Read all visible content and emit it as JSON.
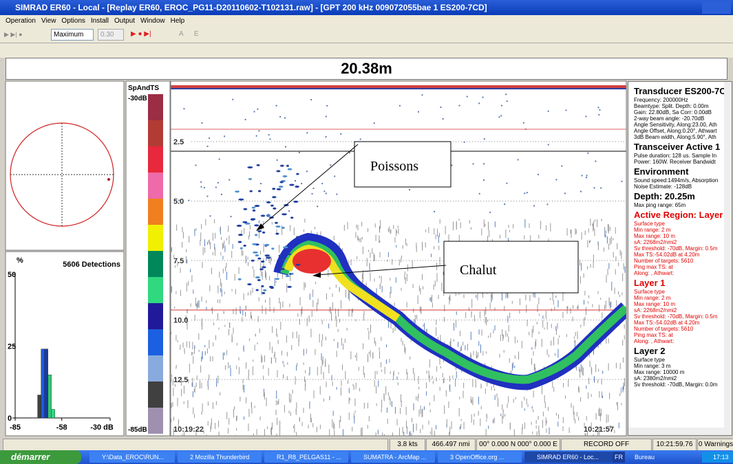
{
  "window": {
    "title": "SIMRAD ER60 - Local - [Replay ER60, EROC_PG11-D20110602-T102131.raw] - [GPT 200 kHz 009072055bae 1 ES200-7CD]",
    "menu": [
      "Operation",
      "View",
      "Options",
      "Install",
      "Output",
      "Window",
      "Help"
    ],
    "toolbar": {
      "range": "Maximum",
      "value": "0.30",
      "buttons": [
        "A",
        "E"
      ]
    }
  },
  "depth_header": "20.38m",
  "histogram": {
    "type": "histogram",
    "title": "5606 Detections",
    "y_unit": "%",
    "xlim": [
      -85,
      -30
    ],
    "xticks": [
      -85,
      -58,
      {
        "value": -30,
        "label": "-30 dB"
      }
    ],
    "ylim": [
      0,
      50
    ],
    "yticks": [
      0,
      25,
      50
    ],
    "bins": [
      -72,
      -70,
      -68,
      -66,
      -64,
      -62
    ],
    "counts": [
      8,
      24,
      24,
      15,
      3
    ],
    "colors": [
      "#404040",
      "#1a5ce0",
      "#1a3aa0",
      "#30c878",
      "#30d880"
    ]
  },
  "colorbar": {
    "title": "SpAndTS",
    "top_label": "-30dB",
    "bottom_label": "-85dB",
    "colors": [
      "#9b2d44",
      "#b23c34",
      "#e8283c",
      "#ee6aa8",
      "#f07f20",
      "#f0f000",
      "#00885a",
      "#30d880",
      "#201a9a",
      "#1a60e0",
      "#88aadd",
      "#404040",
      "#a090b0"
    ]
  },
  "echogram": {
    "depth_labels": [
      "2.5",
      "5.0",
      "7.5",
      "10.0",
      "12.5"
    ],
    "start_time": "10:19:22",
    "end_time": "10:21:57",
    "annotations": [
      "Poissons",
      "Chalut"
    ]
  },
  "info_panel": {
    "sections": [
      {
        "title": "Transducer ES200-7C",
        "color": "#000000",
        "lines": [
          "Frequency: 200000Hz",
          "Beamtype: Split. Depth: 0.00m",
          "Gain: 22.80dB, Sa Corr: 0.00dB",
          "2-way beam angle: -20.70dB",
          "Angle Sensitivity, Along:23.00, Ath",
          "Angle Offset, Along:0.20°, Athwart",
          "3dB Beam width, Along:5.90°, Ath"
        ]
      },
      {
        "title": "Transceiver Active 1",
        "color": "#000000",
        "lines": [
          "Pulse duration: 128 us. Sample In",
          "Power: 160W. Receiver Bandwidt"
        ]
      },
      {
        "title": "Environment",
        "color": "#000000",
        "lines": [
          "Sound speed:1494m/s, Absorption",
          "Noise Estimate: -128dB"
        ]
      },
      {
        "title": "Depth: 20.25m",
        "color": "#000000",
        "lines": [
          "Max ping range: 65m"
        ]
      },
      {
        "title": "Active Region: Layer",
        "color": "#e00000",
        "lines": [
          "Surface type",
          "Min range: 2 m",
          "Max range: 10 m",
          "sA: 2268m2/nmi2",
          "Sv threshold: -70dB, Margin: 0.5m",
          "Max TS:-54.02dB at 4.20m",
          "Number of targets: 5610",
          "Ping max TS:     at",
          "Along:       , Athwart:"
        ]
      },
      {
        "title": "Layer 1",
        "color": "#e00000",
        "lines": [
          "Surface type",
          "Min range: 2 m",
          "Max range: 10 m",
          "sA: 2268m2/nmi2",
          "Sv threshold: -70dB, Margin: 0.5m",
          "Max TS:-54.02dB at 4.20m",
          "Number of targets: 5610",
          "Ping max TS:     at",
          "Along:       , Athwart:"
        ]
      },
      {
        "title": "Layer 2",
        "color": "#000000",
        "lines": [
          "Surface type",
          "Min range: 3 m",
          "Max range: 10000 m",
          "sA: 2380m2/nmi2",
          "Sv threshold: -70dB, Margin: 0.0m"
        ]
      }
    ]
  },
  "status_bar": [
    "3.8 kts",
    "466.497 nmi",
    "00° 0.000 N 000° 0.000 E",
    "RECORD OFF",
    "10:21:59.76",
    "0 Warnings"
  ],
  "taskbar": {
    "start": "démarrer",
    "items": [
      "Y:\\Data_EROC\\RUN...",
      "2 Mozilla Thunderbird",
      "R1_R8_PELGAS11 - ...",
      "SUMATRA - ArcMap ...",
      "3 OpenOffice.org ...",
      "SIMRAD ER60 - Loc..."
    ],
    "tray": [
      "FR",
      "Bureau",
      "17:13"
    ]
  }
}
